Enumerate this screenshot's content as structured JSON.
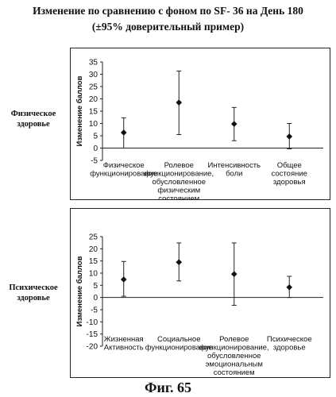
{
  "title_line1": "Изменение по сравнению с фоном по SF- 36 на День 180",
  "title_line2": "(±95% доверительный пример)",
  "figure_caption": "Фиг. 65",
  "chart_data": [
    {
      "type": "scatter",
      "error_bars": true,
      "group_label": "Физическое здоровье",
      "ylabel": "Изменение баллов",
      "ylim": [
        -5,
        35
      ],
      "yticks": [
        -5,
        0,
        5,
        10,
        15,
        20,
        25,
        30,
        35
      ],
      "categories": [
        [
          "Физическое",
          "функционирование"
        ],
        [
          "Ролевое",
          "функционирование,",
          "обусловленное",
          "физическим",
          "состоянием"
        ],
        [
          "Интенсивность",
          "боли"
        ],
        [
          "Общее",
          "состояние",
          "здоровья"
        ]
      ],
      "values": [
        6.3,
        18.5,
        9.8,
        4.7
      ],
      "lower": [
        0,
        5.5,
        3.0,
        -0.3
      ],
      "upper": [
        12.3,
        31.3,
        16.5,
        10.0
      ]
    },
    {
      "type": "scatter",
      "error_bars": true,
      "group_label": "Психическое здоровье",
      "ylabel": "Изменение баллов",
      "ylim": [
        -20,
        25
      ],
      "yticks": [
        -20,
        -15,
        -10,
        -5,
        0,
        5,
        10,
        15,
        20,
        25
      ],
      "categories": [
        [
          "Жизненная",
          "Активность"
        ],
        [
          "Социальное",
          "функционирование"
        ],
        [
          "Ролевое",
          "функционирование,",
          "обусловленное",
          "эмоциональным",
          "состоянием"
        ],
        [
          "Психическое",
          "здоровье"
        ]
      ],
      "values": [
        7.4,
        14.5,
        9.6,
        4.2
      ],
      "lower": [
        0.5,
        6.8,
        -3.2,
        0.0
      ],
      "upper": [
        14.8,
        22.4,
        22.4,
        8.7
      ]
    }
  ]
}
